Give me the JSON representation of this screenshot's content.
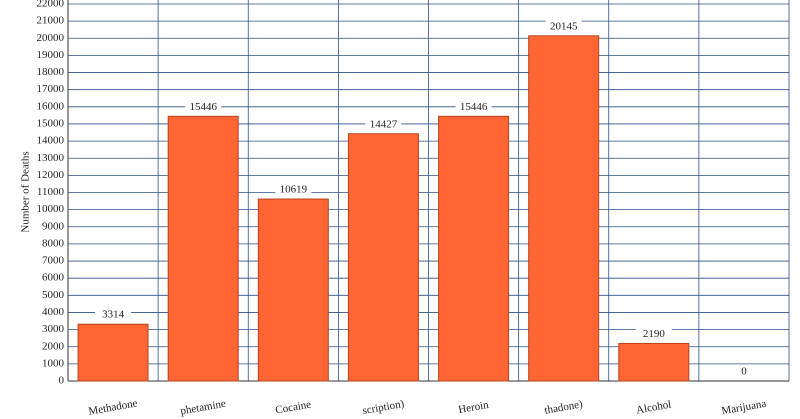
{
  "chart_data": {
    "type": "bar",
    "y_label": "Number of Deaths",
    "categories": [
      "Methadone",
      "phetamine",
      "Cocaine",
      "scription)",
      "Heroin",
      "thadone)",
      "Alcohol",
      "Marijuana"
    ],
    "values": [
      3314,
      15446,
      10619,
      14427,
      15446,
      20145,
      2190,
      0
    ],
    "color": "#ff6633",
    "ylim": [
      0,
      22000
    ],
    "yticks": [
      0,
      1000,
      2000,
      3000,
      4000,
      5000,
      6000,
      7000,
      8000,
      9000,
      10000,
      11000,
      12000,
      13000,
      14000,
      15000,
      16000,
      17000,
      18000,
      19000,
      20000,
      21000,
      22000
    ],
    "grid": true
  }
}
